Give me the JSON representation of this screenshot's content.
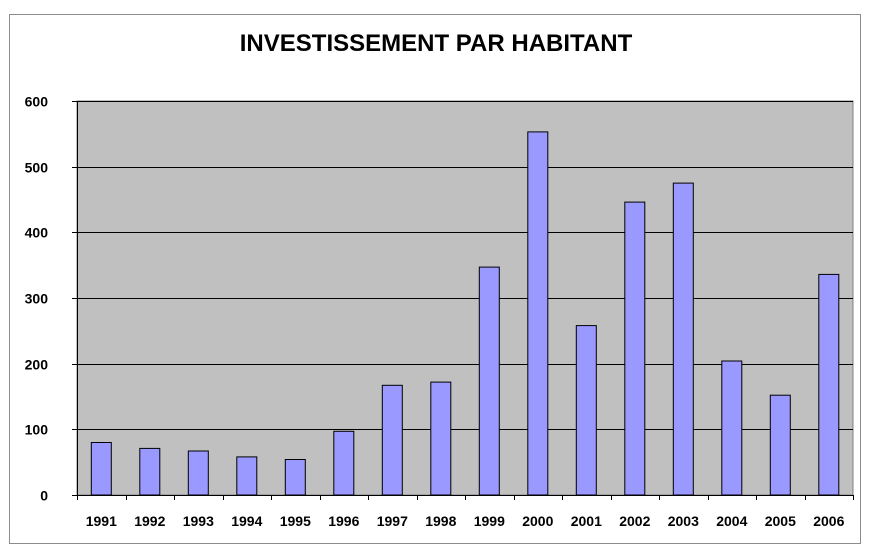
{
  "chart_data": {
    "type": "bar",
    "title": "INVESTISSEMENT PAR HABITANT",
    "categories": [
      "1991",
      "1992",
      "1993",
      "1994",
      "1995",
      "1996",
      "1997",
      "1998",
      "1999",
      "2000",
      "2001",
      "2002",
      "2003",
      "2004",
      "2005",
      "2006"
    ],
    "values": [
      80,
      71,
      67,
      58,
      54,
      97,
      167,
      172,
      347,
      553,
      258,
      446,
      475,
      204,
      152,
      336
    ],
    "ylim": [
      0,
      600
    ],
    "yticks": [
      "0",
      "100",
      "200",
      "300",
      "400",
      "500",
      "600"
    ],
    "grid": true,
    "legend": "none",
    "colors": {
      "bar_fill": "#9999ff",
      "bar_stroke": "#000000",
      "plot_background": "#c0c0c0",
      "gridline": "#000000"
    }
  }
}
